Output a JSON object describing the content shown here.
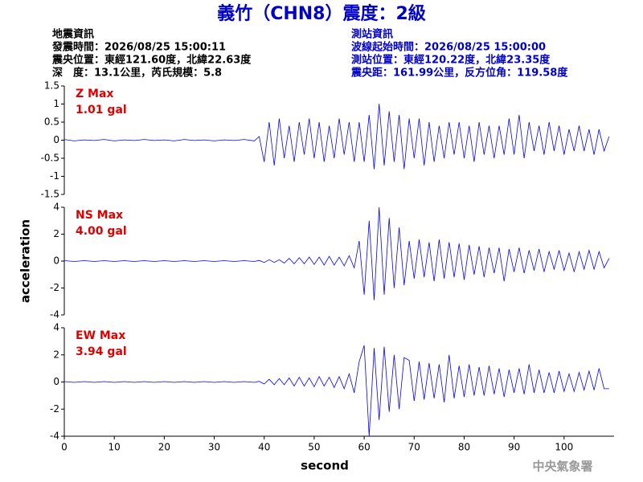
{
  "header": {
    "title": "義竹（CHN8）震度：2級",
    "left": [
      "地震資訊",
      "發震時間：2026/08/25 15:00:11",
      "震央位置：東經121.60度，北緯22.63度",
      "深　度：13.1公里，芮氏規模：5.8"
    ],
    "right": [
      "測站資訊",
      "波線起始時間：2026/08/25 15:00:00",
      "測站位置：東經120.22度，北緯23.35度",
      "震央距：161.99公里，反方位角：119.58度"
    ],
    "watermark": "中央氣象署"
  },
  "chart_data": [
    {
      "type": "line",
      "annotations": [
        "Z Max",
        "1.01 gal"
      ],
      "color": "#0000ff",
      "x": [
        0,
        2,
        4,
        6,
        8,
        10,
        12,
        14,
        16,
        18,
        20,
        22,
        24,
        26,
        28,
        30,
        32,
        34,
        36,
        38,
        39,
        40,
        41,
        42,
        43,
        44,
        45,
        46,
        47,
        48,
        49,
        50,
        51,
        52,
        53,
        54,
        55,
        56,
        57,
        58,
        59,
        60,
        61,
        62,
        63,
        64,
        65,
        66,
        67,
        68,
        69,
        70,
        71,
        72,
        73,
        74,
        75,
        76,
        77,
        78,
        79,
        80,
        81,
        82,
        83,
        84,
        85,
        86,
        87,
        88,
        89,
        90,
        91,
        92,
        93,
        94,
        95,
        96,
        97,
        98,
        99,
        100,
        101,
        102,
        103,
        104,
        105,
        106,
        107,
        108,
        109
      ],
      "values": [
        0.02,
        -0.02,
        0.01,
        -0.01,
        0.02,
        -0.02,
        0.01,
        -0.01,
        0.02,
        -0.01,
        0.01,
        -0.02,
        0.02,
        -0.01,
        0.01,
        -0.02,
        0.01,
        -0.01,
        0.02,
        -0.02,
        0.1,
        -0.6,
        0.5,
        -0.7,
        0.6,
        -0.5,
        0.4,
        -0.6,
        0.5,
        -0.4,
        0.6,
        -0.5,
        0.5,
        -0.6,
        0.4,
        -0.5,
        0.6,
        -0.4,
        0.5,
        -0.6,
        0.5,
        -0.6,
        0.7,
        -0.8,
        1.01,
        -0.7,
        0.8,
        -0.6,
        0.7,
        -0.8,
        0.6,
        -0.5,
        0.6,
        -0.7,
        0.5,
        -0.6,
        0.4,
        -0.5,
        0.5,
        -0.4,
        0.5,
        -0.5,
        0.4,
        -0.6,
        0.5,
        -0.4,
        0.4,
        -0.5,
        0.4,
        -0.4,
        0.6,
        -0.4,
        0.7,
        -0.5,
        0.5,
        -0.3,
        0.4,
        -0.4,
        0.5,
        -0.3,
        0.4,
        -0.4,
        0.3,
        -0.3,
        0.4,
        -0.3,
        0.3,
        -0.4,
        0.3,
        -0.3,
        0.1
      ],
      "xlim": [
        0,
        110
      ],
      "ylim": [
        -1.5,
        1.5
      ],
      "yticks": [
        -1.5,
        -1,
        -0.5,
        0,
        0.5,
        1,
        1.5
      ]
    },
    {
      "type": "line",
      "annotations": [
        "NS Max",
        "4.00 gal"
      ],
      "color": "#0000ff",
      "ylabel": "acceleration",
      "x": [
        0,
        2,
        4,
        6,
        8,
        10,
        12,
        14,
        16,
        18,
        20,
        22,
        24,
        26,
        28,
        30,
        32,
        34,
        36,
        38,
        39,
        40,
        41,
        42,
        43,
        44,
        45,
        46,
        47,
        48,
        49,
        50,
        51,
        52,
        53,
        54,
        55,
        56,
        57,
        58,
        59,
        60,
        61,
        62,
        63,
        64,
        65,
        66,
        67,
        68,
        69,
        70,
        71,
        72,
        73,
        74,
        75,
        76,
        77,
        78,
        79,
        80,
        81,
        82,
        83,
        84,
        85,
        86,
        87,
        88,
        89,
        90,
        91,
        92,
        93,
        94,
        95,
        96,
        97,
        98,
        99,
        100,
        101,
        102,
        103,
        104,
        105,
        106,
        107,
        108,
        109
      ],
      "values": [
        0.03,
        -0.03,
        0.03,
        -0.03,
        0.03,
        -0.03,
        0.03,
        -0.03,
        0.03,
        -0.03,
        0.03,
        -0.03,
        0.03,
        -0.03,
        0.03,
        -0.03,
        0.03,
        -0.03,
        0.03,
        -0.03,
        0.05,
        -0.1,
        0.1,
        -0.1,
        0.1,
        -0.15,
        0.2,
        -0.2,
        0.25,
        -0.2,
        0.3,
        -0.25,
        0.3,
        -0.3,
        0.35,
        -0.3,
        0.3,
        -0.35,
        0.4,
        -0.5,
        1.5,
        -2.5,
        3.0,
        -2.9,
        4.0,
        -2.5,
        3.2,
        -2.0,
        2.5,
        -1.8,
        1.5,
        -1.3,
        1.6,
        -1.2,
        1.4,
        -1.5,
        1.6,
        -1.3,
        1.4,
        -1.2,
        1.3,
        -1.4,
        1.2,
        -1.0,
        1.1,
        -1.2,
        1.0,
        -0.9,
        1.0,
        -1.5,
        0.9,
        -0.8,
        1.0,
        -0.9,
        0.8,
        -0.7,
        0.9,
        -0.8,
        0.7,
        -0.6,
        0.8,
        -0.7,
        0.6,
        -0.8,
        0.7,
        -0.6,
        0.8,
        -0.6,
        0.7,
        -0.5,
        0.2
      ],
      "xlim": [
        0,
        110
      ],
      "ylim": [
        -4,
        4
      ],
      "yticks": [
        -4,
        -2,
        0,
        2,
        4
      ]
    },
    {
      "type": "line",
      "annotations": [
        "EW Max",
        "3.94 gal"
      ],
      "color": "#0000ff",
      "xlabel": "second",
      "x": [
        0,
        2,
        4,
        6,
        8,
        10,
        12,
        14,
        16,
        18,
        20,
        22,
        24,
        26,
        28,
        30,
        32,
        34,
        36,
        38,
        39,
        40,
        41,
        42,
        43,
        44,
        45,
        46,
        47,
        48,
        49,
        50,
        51,
        52,
        53,
        54,
        55,
        56,
        57,
        58,
        59,
        60,
        61,
        62,
        63,
        64,
        65,
        66,
        67,
        68,
        69,
        70,
        71,
        72,
        73,
        74,
        75,
        76,
        77,
        78,
        79,
        80,
        81,
        82,
        83,
        84,
        85,
        86,
        87,
        88,
        89,
        90,
        91,
        92,
        93,
        94,
        95,
        96,
        97,
        98,
        99,
        100,
        101,
        102,
        103,
        104,
        105,
        106,
        107,
        108,
        109
      ],
      "values": [
        0.03,
        -0.03,
        0.03,
        -0.03,
        0.03,
        -0.03,
        0.03,
        -0.03,
        0.03,
        -0.03,
        0.03,
        -0.03,
        0.03,
        -0.03,
        0.03,
        -0.03,
        0.03,
        -0.03,
        0.03,
        -0.03,
        0.05,
        -0.15,
        0.2,
        -0.2,
        0.25,
        -0.2,
        0.3,
        -0.3,
        0.35,
        -0.3,
        0.3,
        -0.35,
        0.4,
        -0.3,
        0.35,
        -0.4,
        0.4,
        -0.5,
        0.6,
        -0.8,
        1.5,
        2.7,
        -4.0,
        2.5,
        -2.8,
        2.6,
        -2.2,
        2.0,
        -2.0,
        1.8,
        1.6,
        -1.4,
        1.5,
        -1.3,
        1.4,
        -1.2,
        1.3,
        -1.5,
        2.0,
        -1.2,
        1.2,
        -1.1,
        1.3,
        -1.0,
        1.1,
        -1.0,
        1.2,
        -0.9,
        1.0,
        -1.1,
        0.9,
        -0.8,
        1.0,
        -0.9,
        1.3,
        -0.8,
        0.9,
        -0.8,
        0.7,
        -0.8,
        0.8,
        -0.7,
        0.6,
        -0.7,
        0.7,
        -0.6,
        0.8,
        -0.6,
        1.0,
        -0.5,
        -0.5
      ],
      "xlim": [
        0,
        110
      ],
      "ylim": [
        -4,
        4
      ],
      "yticks": [
        -4,
        -2,
        0,
        2,
        4
      ],
      "xticks": [
        0,
        10,
        20,
        30,
        40,
        50,
        60,
        70,
        80,
        90,
        100
      ]
    }
  ]
}
